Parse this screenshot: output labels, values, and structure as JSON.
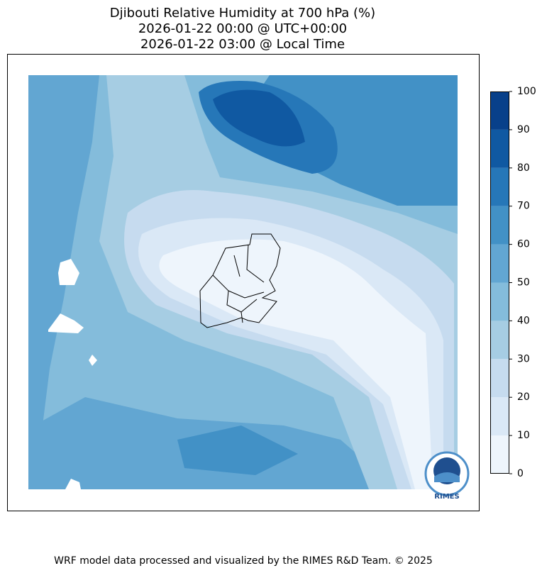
{
  "title": [
    "Djibouti Relative Humidity at 700 hPa (%)",
    "2026-01-22 00:00 @ UTC+00:00",
    "2026-01-22 03:00 @ Local Time"
  ],
  "colorbar": {
    "ticks": [
      0,
      10,
      20,
      30,
      40,
      50,
      60,
      70,
      80,
      90,
      100
    ],
    "colors": [
      "#eef5fc",
      "#dae8f6",
      "#c6dbef",
      "#a6cde3",
      "#84bcdb",
      "#62a6d2",
      "#4291c6",
      "#2677b8",
      "#1059a2",
      "#08408a"
    ]
  },
  "logo": {
    "text": "RIMES"
  },
  "footer": "WRF model data processed and visualized by the RIMES R&D Team. © 2025"
}
